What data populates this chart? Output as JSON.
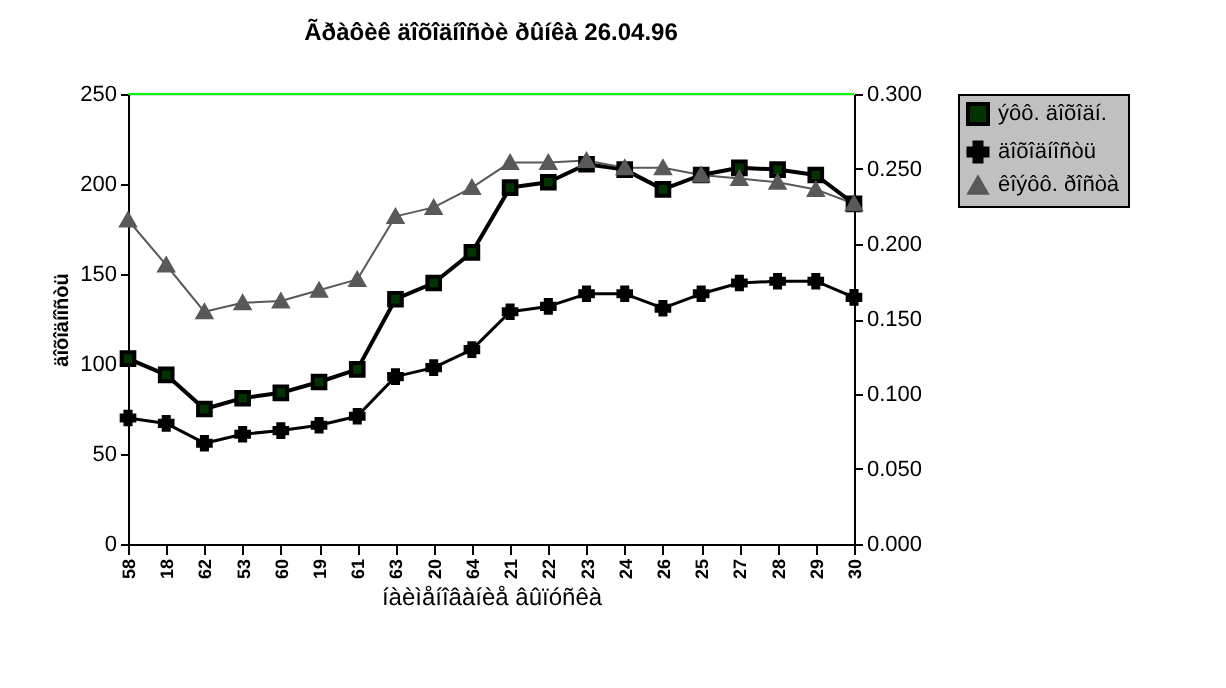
{
  "chart_data": {
    "type": "line",
    "title": "Ãðàôèê äîõîäíîñòè ðûíêà 26.04.96",
    "xlabel": "íàèìåíîâàíèå âûïóñêà",
    "ylabel": "äîõîäíîñòü",
    "categories": [
      "58",
      "18",
      "62",
      "53",
      "60",
      "19",
      "61",
      "63",
      "20",
      "64",
      "21",
      "22",
      "23",
      "24",
      "26",
      "25",
      "27",
      "28",
      "29",
      "30"
    ],
    "series": [
      {
        "name": "ýôô. äîõîäí.",
        "color": "#000000",
        "marker": "square",
        "values": [
          103,
          94,
          75,
          81,
          84,
          90,
          97,
          136,
          145,
          162,
          198,
          201,
          211,
          208,
          197,
          205,
          209,
          208,
          205,
          189
        ]
      },
      {
        "name": "äîõîäíîñòü",
        "color": "#000000",
        "marker": "cross",
        "values": [
          70,
          67,
          56,
          61,
          63,
          66,
          71,
          93,
          98,
          108,
          129,
          132,
          139,
          139,
          131,
          139,
          145,
          146,
          146,
          137
        ]
      },
      {
        "name": "êîýôô. ðîñòà",
        "color": "#595959",
        "marker": "triangle",
        "values": [
          180,
          155,
          129,
          134,
          135,
          141,
          147,
          182,
          187,
          198,
          212,
          212,
          213,
          209,
          209,
          205,
          203,
          201,
          197,
          189
        ]
      }
    ],
    "ylim": [
      0,
      250
    ],
    "yticks": [
      0,
      50,
      100,
      150,
      200,
      250
    ],
    "y2lim": [
      0,
      0.3
    ],
    "y2ticks": [
      {
        "value": 0,
        "label": "0.000"
      },
      {
        "value": 0.05,
        "label": "0.050"
      },
      {
        "value": 0.1,
        "label": "0.100"
      },
      {
        "value": 0.15,
        "label": "0.150"
      },
      {
        "value": 0.2,
        "label": "0.200"
      },
      {
        "value": 0.25,
        "label": "0.250"
      },
      {
        "value": 0.3,
        "label": "0.300"
      }
    ],
    "ref_lines": [
      {
        "axis": "y",
        "value": 250,
        "color": "#00ff00"
      }
    ],
    "grid": false,
    "legend": "right",
    "line_style": "solid"
  }
}
